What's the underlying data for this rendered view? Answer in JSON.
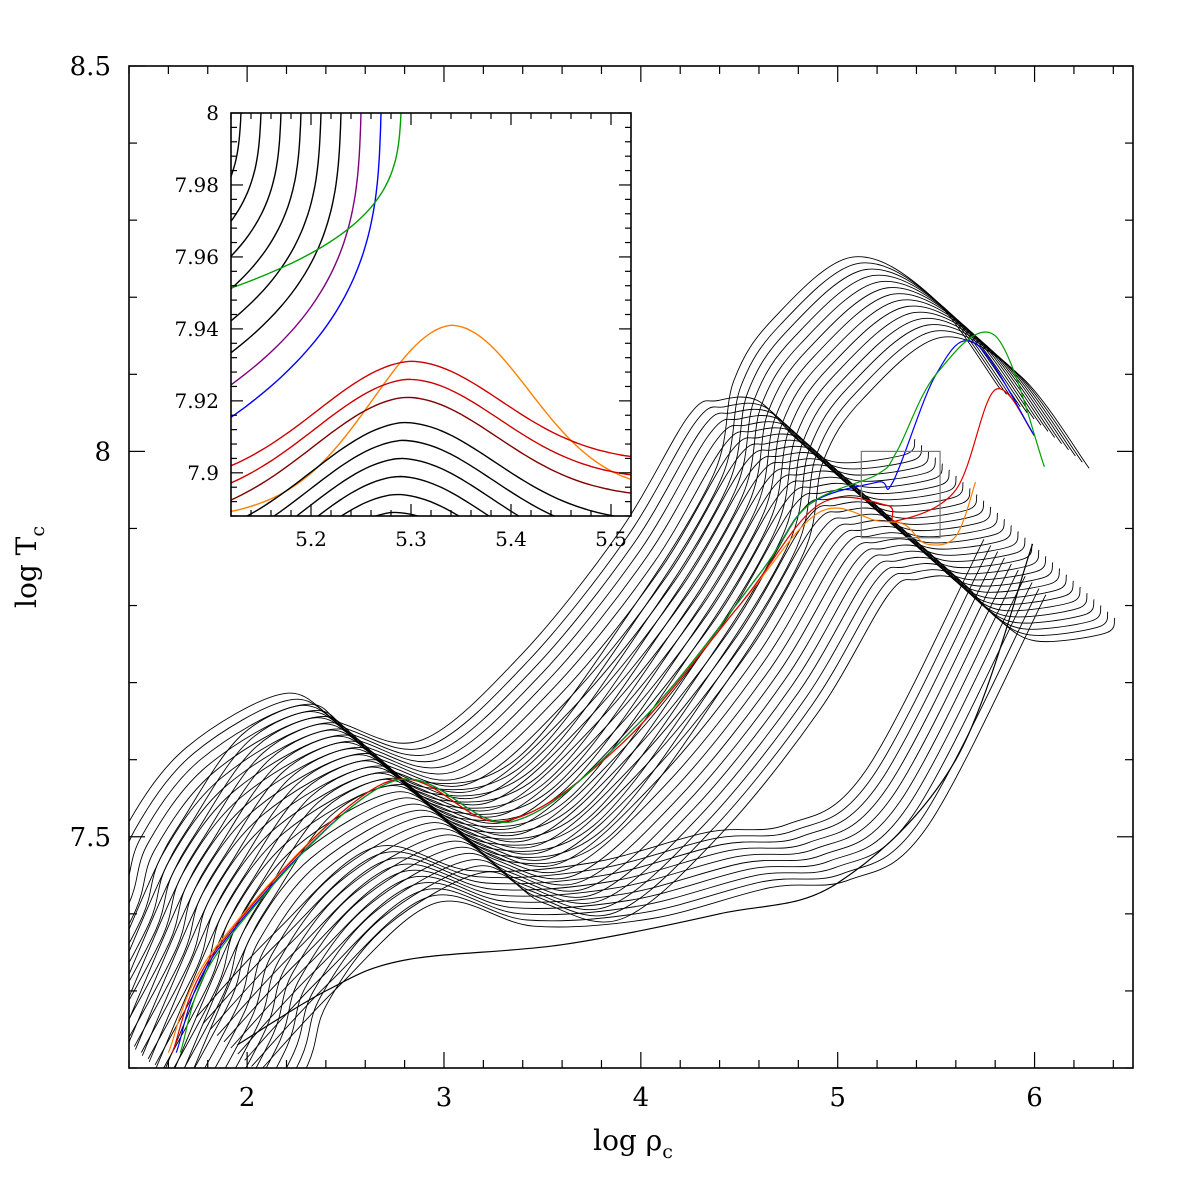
{
  "chart_data": [
    {
      "type": "line",
      "title": "",
      "xlabel": "log ρ_c",
      "xlabel_main": "log ρ",
      "xlabel_sub": "c",
      "ylabel": "log T_c",
      "ylabel_main": "log T",
      "ylabel_sub": "c",
      "xlim": [
        1.4,
        6.5
      ],
      "ylim": [
        7.2,
        8.5
      ],
      "x_ticks": [
        2,
        3,
        4,
        5,
        6
      ],
      "x_tick_labels": [
        "2",
        "3",
        "4",
        "5",
        "6"
      ],
      "y_ticks": [
        7.5,
        8.0,
        8.5
      ],
      "y_tick_labels": [
        "7.5",
        "8",
        "8.5"
      ],
      "grid": false,
      "zoom_box": {
        "x": [
          5.12,
          5.52
        ],
        "y": [
          7.888,
          8.0
        ]
      },
      "series": [
        {
          "color": "#000000",
          "count": 14,
          "x": [
            1.45,
            1.75,
            1.9,
            2.2,
            2.55,
            2.75,
            3.1,
            3.6,
            4.2,
            4.6,
            4.7,
            4.9,
            5.3,
            5.7,
            6.05
          ],
          "y": [
            7.22,
            7.4,
            7.47,
            7.58,
            7.62,
            7.58,
            7.52,
            7.55,
            7.75,
            7.92,
            8.04,
            8.12,
            8.2,
            8.15,
            8.03
          ]
        },
        {
          "color": "#000000",
          "count": 30,
          "x": [
            1.55,
            1.8,
            1.9,
            2.2,
            2.7,
            3.0,
            3.4,
            3.9,
            4.4,
            4.75,
            4.9,
            5.1,
            5.3,
            5.5,
            5.85,
            5.9
          ],
          "y": [
            7.2,
            7.32,
            7.4,
            7.5,
            7.57,
            7.53,
            7.51,
            7.62,
            7.78,
            7.93,
            7.95,
            7.95,
            7.9,
            7.87,
            7.88,
            7.9
          ]
        },
        {
          "color": "#ff7f00",
          "x": [
            1.6,
            1.85,
            2.7,
            3.3,
            3.9,
            4.5,
            4.9,
            5.2,
            5.34,
            5.45,
            5.6,
            5.7
          ],
          "y": [
            7.22,
            7.36,
            7.57,
            7.52,
            7.62,
            7.8,
            7.92,
            7.91,
            7.905,
            7.88,
            7.89,
            7.96
          ]
        },
        {
          "color": "#e00000",
          "x": [
            1.62,
            1.86,
            2.7,
            3.3,
            3.9,
            4.5,
            4.9,
            5.25,
            5.3,
            5.6,
            5.8,
            6.0
          ],
          "y": [
            7.22,
            7.36,
            7.57,
            7.52,
            7.62,
            7.8,
            7.93,
            7.93,
            7.91,
            7.95,
            8.08,
            8.02
          ]
        },
        {
          "color": "#0000ff",
          "x": [
            1.64,
            1.87,
            2.72,
            3.35,
            4.0,
            4.6,
            4.85,
            5.2,
            5.28,
            5.5,
            5.7,
            6.0
          ],
          "y": [
            7.22,
            7.36,
            7.57,
            7.52,
            7.65,
            7.84,
            7.93,
            7.96,
            7.96,
            8.1,
            8.14,
            8.02
          ]
        },
        {
          "color": "#00a000",
          "x": [
            1.66,
            1.88,
            2.72,
            3.35,
            4.0,
            4.6,
            4.85,
            5.2,
            5.3,
            5.5,
            5.8,
            6.05
          ],
          "y": [
            7.22,
            7.36,
            7.57,
            7.52,
            7.65,
            7.84,
            7.93,
            7.97,
            8.0,
            8.1,
            8.15,
            7.98
          ]
        },
        {
          "color": "#000000",
          "count": 10,
          "x": [
            1.9,
            2.3,
            2.8,
            3.3,
            3.9,
            4.5,
            4.9,
            5.3,
            5.9
          ],
          "y": [
            7.23,
            7.34,
            7.45,
            7.42,
            7.43,
            7.47,
            7.48,
            7.55,
            7.85
          ]
        },
        {
          "color": "#000000",
          "x": [
            1.95,
            2.4,
            2.8,
            3.6,
            4.4,
            5.0,
            5.6,
            5.99
          ],
          "y": [
            7.23,
            7.3,
            7.34,
            7.36,
            7.4,
            7.44,
            7.6,
            7.88
          ]
        }
      ]
    },
    {
      "type": "line",
      "title": "",
      "xlabel": "",
      "ylabel": "",
      "xlim": [
        5.12,
        5.52
      ],
      "ylim": [
        7.888,
        8.0
      ],
      "x_ticks": [
        5.2,
        5.3,
        5.4,
        5.5
      ],
      "x_tick_labels": [
        "5.2",
        "5.3",
        "5.4",
        "5.5"
      ],
      "y_ticks": [
        7.9,
        7.92,
        7.94,
        7.96,
        7.98,
        8.0
      ],
      "y_tick_labels": [
        "7.9",
        "7.92",
        "7.94",
        "7.96",
        "7.98",
        "8"
      ],
      "grid": false,
      "upper_curve_tops": [
        5.13,
        5.15,
        5.17,
        5.19,
        5.21,
        5.23,
        5.25,
        5.27,
        5.29
      ],
      "upper_curve_colors": [
        "#000000",
        "#000000",
        "#000000",
        "#000000",
        "#000000",
        "#000000",
        "#800080",
        "#0000ff",
        "#00a000"
      ],
      "upper_curve_bases": [
        7.944,
        7.938,
        7.932,
        7.926,
        7.92,
        7.914,
        7.908,
        7.902,
        7.946
      ],
      "lower_curve_peaks": [
        7.941,
        7.931,
        7.926,
        7.921,
        7.914,
        7.909,
        7.904,
        7.899,
        7.894,
        7.889
      ],
      "lower_curve_colors": [
        "#ff7f00",
        "#cc0000",
        "#cc0000",
        "#800000",
        "#000000",
        "#000000",
        "#000000",
        "#000000",
        "#000000",
        "#000000"
      ],
      "series": [
        {
          "color": "#00a000",
          "x": [
            5.12,
            5.2,
            5.26,
            5.3,
            5.3,
            5.29
          ],
          "y": [
            7.905,
            7.918,
            7.935,
            7.955,
            7.98,
            8.0
          ]
        },
        {
          "color": "#ff7f00",
          "x": [
            5.12,
            5.25,
            5.3,
            5.34,
            5.4,
            5.52
          ],
          "y": [
            7.9,
            7.935,
            7.94,
            7.941,
            7.93,
            7.895
          ]
        }
      ]
    }
  ]
}
